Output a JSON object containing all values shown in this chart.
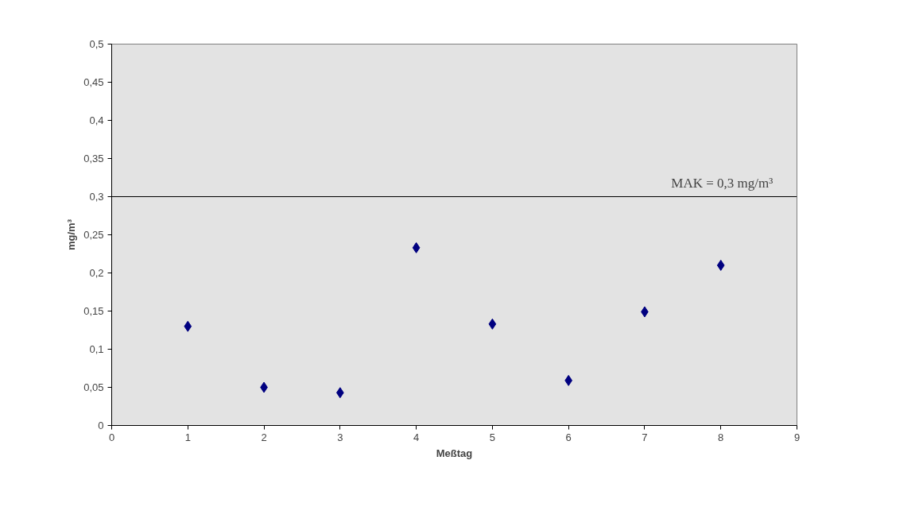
{
  "chart_data": {
    "type": "scatter",
    "xlabel": "Meßtag",
    "ylabel": "mg/m³",
    "x": [
      1,
      2,
      3,
      4,
      5,
      6,
      7,
      8
    ],
    "series": [
      {
        "color": "#000080",
        "values": [
          0.13,
          0.05,
          0.043,
          0.233,
          0.133,
          0.059,
          0.149,
          0.21
        ]
      }
    ],
    "xlim": [
      0,
      9
    ],
    "xticks": [
      0,
      1,
      2,
      3,
      4,
      5,
      6,
      7,
      8,
      9
    ],
    "ylim": [
      0,
      0.5
    ],
    "yticks": [
      0,
      {
        "value": 0.05,
        "label": "0,05"
      },
      {
        "value": 0.1,
        "label": "0,1"
      },
      {
        "value": 0.15,
        "label": "0,15"
      },
      {
        "value": 0.2,
        "label": "0,2"
      },
      {
        "value": 0.25,
        "label": "0,25"
      },
      {
        "value": 0.3,
        "label": "0,3"
      },
      {
        "value": 0.35,
        "label": "0,35"
      },
      {
        "value": 0.4,
        "label": "0,4"
      },
      {
        "value": 0.45,
        "label": "0,45"
      },
      {
        "value": 0.5,
        "label": "0,5"
      }
    ],
    "ref_lines": [
      {
        "axis": "y",
        "value": 0.3,
        "label": "MAK = 0,3 mg/m³",
        "color": "#000000"
      }
    ],
    "marker": "diamond",
    "grid": false
  }
}
